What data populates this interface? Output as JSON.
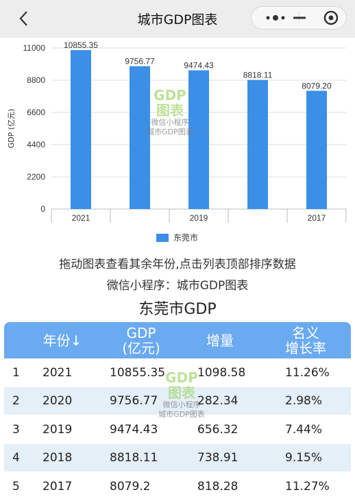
{
  "nav": {
    "title": "城市GDP图表"
  },
  "chart_data": {
    "type": "bar",
    "categories": [
      "2021",
      "2020",
      "2019",
      "2018",
      "2017"
    ],
    "tick_labels": [
      "2021",
      "",
      "2019",
      "",
      "2017"
    ],
    "values": [
      10855.35,
      9756.77,
      9474.43,
      8818.11,
      8079.2
    ],
    "value_labels": [
      "10855.35",
      "9756.77",
      "9474.43",
      "8818.11",
      "8079.20"
    ],
    "ylabel": "GDP (亿元)",
    "yticks": [
      "0",
      "2200",
      "4400",
      "6600",
      "8800",
      "11000"
    ],
    "ylim": [
      0,
      11000
    ],
    "legend": "东莞市",
    "color": "#3b8fe6"
  },
  "hints": {
    "line1": "拖动图表查看其余年份,点击列表顶部排序数据",
    "line2": "微信小程序：城市GDP图表"
  },
  "table": {
    "title": "东莞市GDP",
    "headers": {
      "year": "年份↓",
      "gdp_l1": "GDP",
      "gdp_l2": "(亿元)",
      "increase": "增量",
      "rate_l1": "名义",
      "rate_l2": "增长率"
    },
    "header_color": "#6aaaf0",
    "rows": [
      {
        "idx": "1",
        "year": "2021",
        "gdp": "10855.35",
        "inc": "1098.58",
        "rate": "11.26%"
      },
      {
        "idx": "2",
        "year": "2020",
        "gdp": "9756.77",
        "inc": "282.34",
        "rate": "2.98%"
      },
      {
        "idx": "3",
        "year": "2019",
        "gdp": "9474.43",
        "inc": "656.32",
        "rate": "7.44%"
      },
      {
        "idx": "4",
        "year": "2018",
        "gdp": "8818.11",
        "inc": "738.91",
        "rate": "9.15%"
      },
      {
        "idx": "5",
        "year": "2017",
        "gdp": "8079.2",
        "inc": "818.28",
        "rate": "11.27%"
      }
    ]
  },
  "watermark": {
    "gdp": "GDP",
    "biao": "图表",
    "line1": "微信小程序",
    "line2": "城市GDP图表"
  }
}
